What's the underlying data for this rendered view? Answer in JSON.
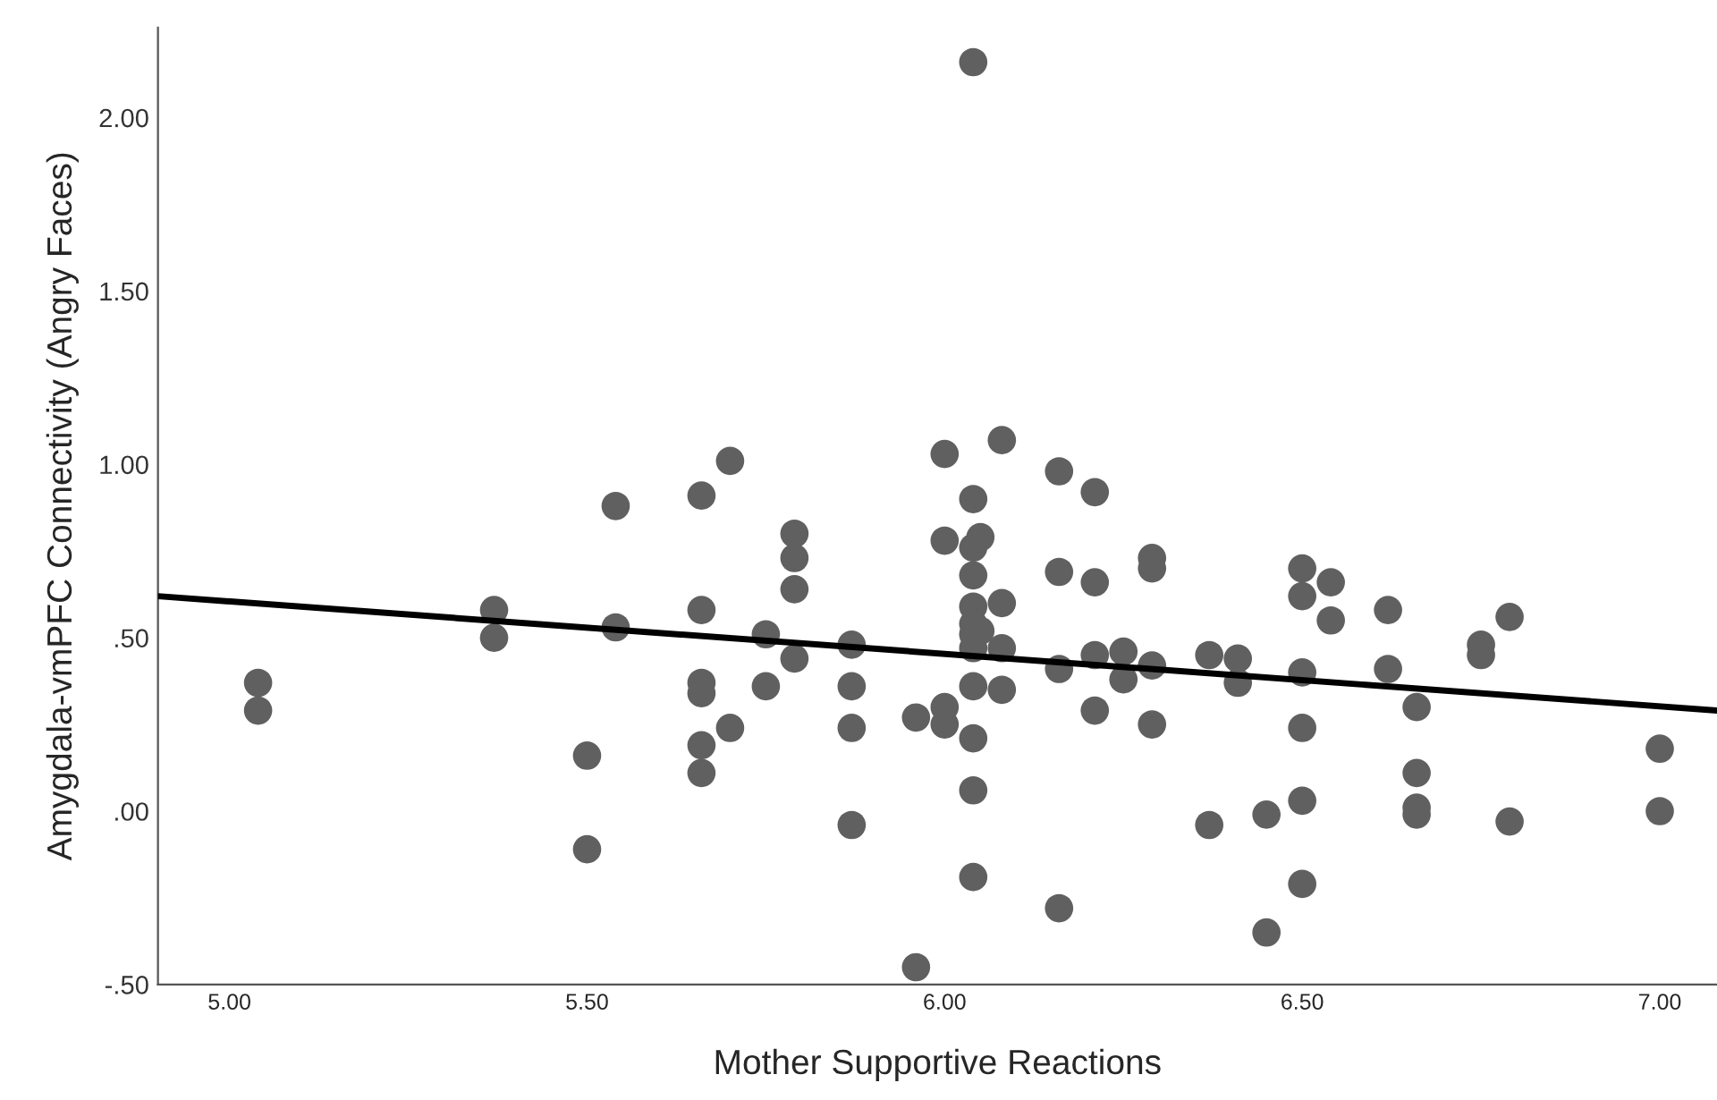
{
  "chart_data": {
    "type": "scatter",
    "xlabel": "Mother Supportive Reactions",
    "ylabel": "Amygdala-vmPFC Connectivity (Angry Faces)",
    "xlim": [
      4.9,
      7.08
    ],
    "ylim": [
      -0.5,
      2.26
    ],
    "xticks": [
      {
        "value": 5,
        "label": "5.00"
      },
      {
        "value": 5.5,
        "label": "5.50"
      },
      {
        "value": 6,
        "label": "6.00"
      },
      {
        "value": 6.5,
        "label": "6.50"
      },
      {
        "value": 7,
        "label": "7.00"
      }
    ],
    "yticks": [
      {
        "value": -0.5,
        "label": "-.50"
      },
      {
        "value": 0,
        "label": ".00"
      },
      {
        "value": 0.5,
        "label": ".50"
      },
      {
        "value": 1,
        "label": "1.00"
      },
      {
        "value": 1.5,
        "label": "1.50"
      },
      {
        "value": 2,
        "label": "2.00"
      }
    ],
    "grid": false,
    "legend": false,
    "marker": "circle",
    "series": [
      {
        "color": "#606060",
        "x": [
          5.04,
          5.04,
          5.37,
          5.37,
          5.5,
          5.5,
          5.54,
          5.54,
          5.66,
          5.66,
          5.66,
          5.66,
          5.66,
          5.66,
          5.7,
          5.7,
          5.75,
          5.75,
          5.79,
          5.79,
          5.79,
          5.79,
          5.87,
          5.87,
          5.87,
          5.87,
          5.96,
          5.96,
          6.0,
          6.0,
          6.0,
          6.0,
          6.04,
          6.04,
          6.04,
          6.04,
          6.04,
          6.04,
          6.04,
          6.04,
          6.04,
          6.04,
          6.04,
          6.04,
          6.05,
          6.05,
          6.08,
          6.08,
          6.08,
          6.08,
          6.16,
          6.16,
          6.16,
          6.16,
          6.21,
          6.21,
          6.21,
          6.21,
          6.25,
          6.25,
          6.29,
          6.29,
          6.29,
          6.29,
          6.37,
          6.37,
          6.41,
          6.41,
          6.45,
          6.45,
          6.5,
          6.5,
          6.5,
          6.5,
          6.5,
          6.5,
          6.54,
          6.54,
          6.62,
          6.62,
          6.66,
          6.66,
          6.66,
          6.66,
          6.75,
          6.75,
          6.79,
          6.79,
          7.0,
          7.0
        ],
        "values": [
          0.37,
          0.29,
          0.58,
          0.5,
          0.16,
          -0.11,
          0.88,
          0.53,
          0.91,
          0.58,
          0.37,
          0.34,
          0.19,
          0.11,
          1.01,
          0.24,
          0.51,
          0.36,
          0.8,
          0.73,
          0.64,
          0.44,
          0.48,
          0.36,
          0.24,
          -0.04,
          -0.45,
          0.27,
          1.03,
          0.78,
          0.3,
          0.25,
          2.16,
          0.9,
          0.76,
          0.68,
          0.59,
          0.54,
          0.51,
          0.47,
          0.36,
          0.21,
          0.06,
          -0.19,
          0.79,
          0.52,
          1.07,
          0.6,
          0.47,
          0.35,
          0.98,
          0.69,
          0.41,
          -0.28,
          0.92,
          0.66,
          0.45,
          0.29,
          0.46,
          0.38,
          0.73,
          0.7,
          0.42,
          0.25,
          0.45,
          -0.04,
          0.44,
          0.37,
          -0.01,
          -0.35,
          0.7,
          0.62,
          0.4,
          0.24,
          0.03,
          -0.21,
          0.66,
          0.55,
          0.58,
          0.41,
          0.3,
          0.11,
          0.01,
          -0.01,
          0.48,
          0.45,
          0.56,
          -0.03,
          0.18,
          0.0
        ]
      },
      {
        "type": "line",
        "color": "#000000",
        "x": [
          4.9,
          7.08
        ],
        "values": [
          0.62,
          0.29
        ],
        "marker": "none",
        "line_style": "solid"
      }
    ]
  }
}
